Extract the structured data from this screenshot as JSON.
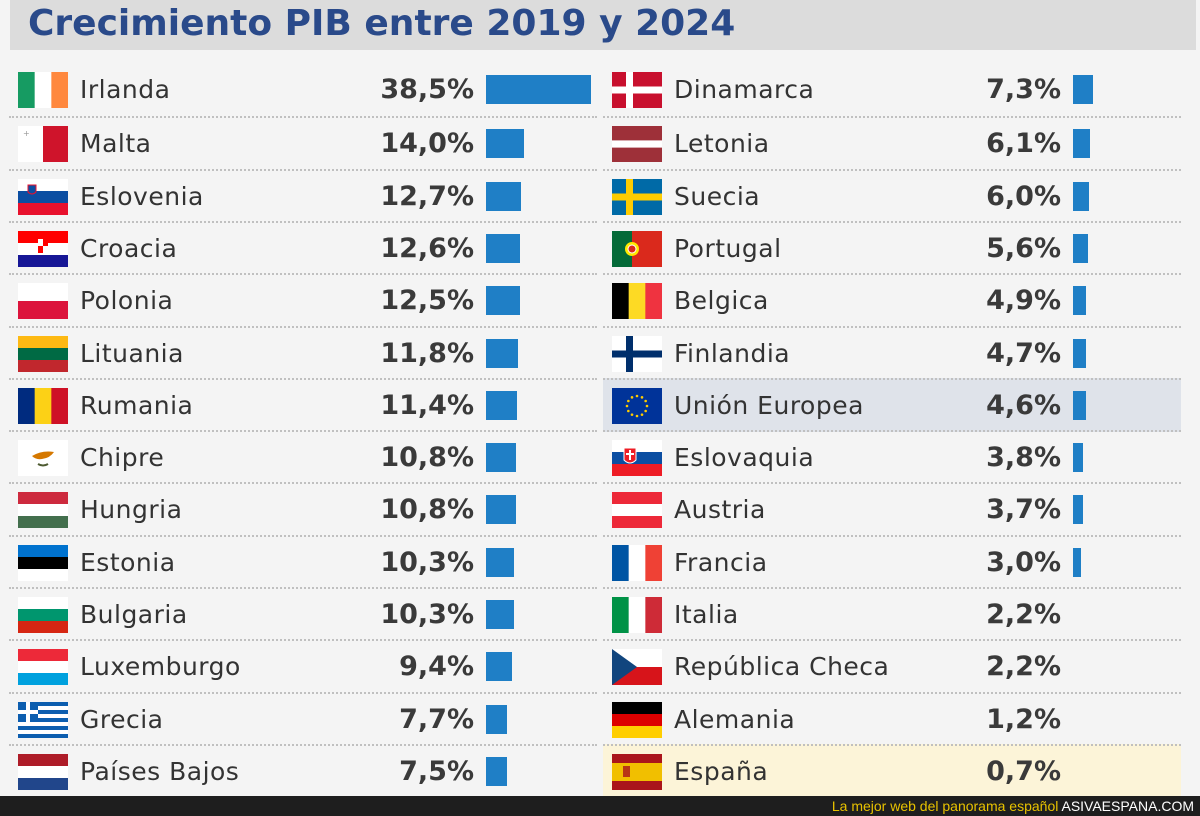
{
  "chart_data": {
    "type": "bar",
    "title": "Crecimiento PIB entre 2019 y 2024",
    "unit": "%",
    "columns": [
      [
        {
          "country": "Irlanda",
          "label": "38,5%",
          "value": 38.5,
          "flag": "ireland-flag"
        },
        {
          "country": "Malta",
          "label": "14,0%",
          "value": 14.0,
          "flag": "malta-flag"
        },
        {
          "country": "Eslovenia",
          "label": "12,7%",
          "value": 12.7,
          "flag": "slovenia-flag"
        },
        {
          "country": "Croacia",
          "label": "12,6%",
          "value": 12.6,
          "flag": "croatia-flag"
        },
        {
          "country": "Polonia",
          "label": "12,5%",
          "value": 12.5,
          "flag": "poland-flag"
        },
        {
          "country": "Lituania",
          "label": "11,8%",
          "value": 11.8,
          "flag": "lithuania-flag"
        },
        {
          "country": "Rumania",
          "label": "11,4%",
          "value": 11.4,
          "flag": "romania-flag"
        },
        {
          "country": "Chipre",
          "label": "10,8%",
          "value": 10.8,
          "flag": "cyprus-flag"
        },
        {
          "country": "Hungria",
          "label": "10,8%",
          "value": 10.8,
          "flag": "hungary-flag"
        },
        {
          "country": "Estonia",
          "label": "10,3%",
          "value": 10.3,
          "flag": "estonia-flag"
        },
        {
          "country": "Bulgaria",
          "label": "10,3%",
          "value": 10.3,
          "flag": "bulgaria-flag"
        },
        {
          "country": "Luxemburgo",
          "label": "9,4%",
          "value": 9.4,
          "flag": "luxembourg-flag"
        },
        {
          "country": "Grecia",
          "label": "7,7%",
          "value": 7.7,
          "flag": "greece-flag"
        },
        {
          "country": "Países Bajos",
          "label": "7,5%",
          "value": 7.5,
          "flag": "netherlands-flag"
        }
      ],
      [
        {
          "country": "Dinamarca",
          "label": "7,3%",
          "value": 7.3,
          "flag": "denmark-flag"
        },
        {
          "country": "Letonia",
          "label": "6,1%",
          "value": 6.1,
          "flag": "latvia-flag"
        },
        {
          "country": "Suecia",
          "label": "6,0%",
          "value": 6.0,
          "flag": "sweden-flag"
        },
        {
          "country": "Portugal",
          "label": "5,6%",
          "value": 5.6,
          "flag": "portugal-flag"
        },
        {
          "country": "Belgica",
          "label": "4,9%",
          "value": 4.9,
          "flag": "belgium-flag"
        },
        {
          "country": "Finlandia",
          "label": "4,7%",
          "value": 4.7,
          "flag": "finland-flag"
        },
        {
          "country": "Unión Europea",
          "label": "4,6%",
          "value": 4.6,
          "flag": "eu-flag",
          "highlight": "#dfe3ea"
        },
        {
          "country": "Eslovaquia",
          "label": "3,8%",
          "value": 3.8,
          "flag": "slovakia-flag"
        },
        {
          "country": "Austria",
          "label": "3,7%",
          "value": 3.7,
          "flag": "austria-flag"
        },
        {
          "country": "Francia",
          "label": "3,0%",
          "value": 3.0,
          "flag": "france-flag"
        },
        {
          "country": "Italia",
          "label": "2,2%",
          "value": 2.2,
          "flag": "italy-flag"
        },
        {
          "country": "República Checa",
          "label": "2,2%",
          "value": 2.2,
          "flag": "czech-flag"
        },
        {
          "country": "Alemania",
          "label": "1,2%",
          "value": 1.2,
          "flag": "germany-flag"
        },
        {
          "country": "España",
          "label": "0,7%",
          "value": 0.7,
          "flag": "spain-flag",
          "highlight": "#fcf4d8"
        }
      ]
    ],
    "bars_shown_from": 3.0,
    "bar_color": "#1f7fc6"
  },
  "footer": {
    "text": "La mejor web del panorama español",
    "brand": "ASIVAESPANA.COM"
  },
  "colors": {
    "title": "#2a4a8a",
    "title_bg": "#dcdcdc",
    "footer_bg": "#1e1e1e",
    "footer_text": "#e8c200"
  }
}
